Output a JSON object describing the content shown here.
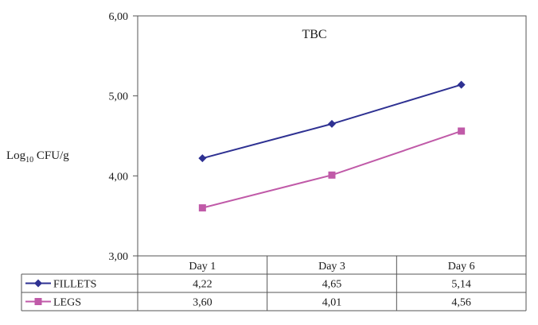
{
  "chart_data": {
    "type": "line",
    "title": "TBC",
    "ylabel_main": "Log",
    "ylabel_sub": "10",
    "ylabel_unit": " CFU/g",
    "categories": [
      "Day 1",
      "Day 3",
      "Day 6"
    ],
    "y_ticks": [
      "6,00",
      "5,00",
      "4,00",
      "3,00"
    ],
    "y_tick_values": [
      6,
      5,
      4,
      3
    ],
    "ylim": [
      3,
      6
    ],
    "grid": false,
    "legend": "data-table-left",
    "series": [
      {
        "name": "FILLETS",
        "values": [
          4.22,
          4.65,
          5.14
        ],
        "labels": [
          "4,22",
          "4,65",
          "5,14"
        ],
        "color": "#2e3192",
        "marker": "diamond"
      },
      {
        "name": "LEGS",
        "values": [
          3.6,
          4.01,
          4.56
        ],
        "labels": [
          "3,60",
          "4,01",
          "4,56"
        ],
        "color": "#c05aa8",
        "marker": "square"
      }
    ]
  }
}
